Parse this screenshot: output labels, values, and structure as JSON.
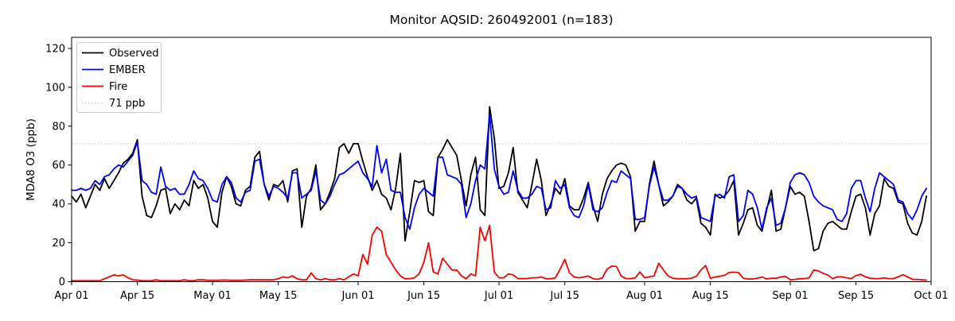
{
  "figure": {
    "title": "Monitor AQSID: 260492001 (n=183)",
    "ylabel": "MDA8 O3 (ppb)"
  },
  "chart_data": {
    "type": "line",
    "title": "Monitor AQSID: 260492001 (n=183)",
    "xlabel": "",
    "ylabel": "MDA8 O3 (ppb)",
    "n_points": 183,
    "x_unit": "days since Apr 01 (daily values, Apr 01 - Sep 30)",
    "x_axis_span_days": 183,
    "ylim": [
      0,
      125.7
    ],
    "yticks": [
      0,
      20,
      40,
      60,
      80,
      100,
      120
    ],
    "xticks": [
      {
        "day": 0,
        "label": "Apr 01"
      },
      {
        "day": 14,
        "label": "Apr 15"
      },
      {
        "day": 30,
        "label": "May 01"
      },
      {
        "day": 44,
        "label": "May 15"
      },
      {
        "day": 61,
        "label": "Jun 01"
      },
      {
        "day": 75,
        "label": "Jun 15"
      },
      {
        "day": 91,
        "label": "Jul 01"
      },
      {
        "day": 105,
        "label": "Jul 15"
      },
      {
        "day": 122,
        "label": "Aug 01"
      },
      {
        "day": 136,
        "label": "Aug 15"
      },
      {
        "day": 153,
        "label": "Sep 01"
      },
      {
        "day": 167,
        "label": "Sep 15"
      },
      {
        "day": 183,
        "label": "Oct 01"
      }
    ],
    "grid": false,
    "legend_position": "upper left",
    "threshold": {
      "value": 71,
      "label": "71 ppb",
      "color": "#d3d3d3",
      "style": "dotted"
    },
    "series": [
      {
        "name": "Observed",
        "color": "#000000",
        "values": [
          44,
          41,
          45,
          38,
          44,
          50,
          47,
          53,
          48,
          52,
          56,
          61,
          63,
          66,
          73,
          44,
          34,
          33,
          39,
          47,
          48,
          35,
          40,
          37,
          42,
          39,
          52,
          48,
          50,
          43,
          31,
          28,
          46,
          54,
          49,
          40,
          39,
          47,
          49,
          64,
          67,
          50,
          42,
          50,
          49,
          52,
          41,
          57,
          58,
          28,
          44,
          48,
          60,
          37,
          40,
          46,
          53,
          69,
          71,
          66,
          71,
          71,
          62,
          54,
          47,
          52,
          45,
          43,
          37,
          48,
          66,
          21,
          36,
          52,
          51,
          52,
          36,
          34,
          64,
          68,
          73,
          69,
          65,
          52,
          39,
          55,
          64,
          37,
          34,
          90,
          74,
          48,
          49,
          56,
          69,
          46,
          42,
          38,
          50,
          63,
          52,
          34,
          40,
          48,
          45,
          53,
          39,
          37,
          37,
          43,
          51,
          39,
          31,
          45,
          53,
          57,
          60,
          61,
          60,
          54,
          26,
          31,
          31,
          50,
          62,
          50,
          39,
          41,
          44,
          50,
          48,
          42,
          40,
          43,
          30,
          28,
          24,
          45,
          43,
          44,
          47,
          52,
          24,
          30,
          37,
          38,
          29,
          26,
          37,
          47,
          26,
          27,
          38,
          49,
          45,
          46,
          44,
          31,
          16,
          17,
          26,
          30,
          31,
          29,
          27,
          27,
          36,
          44,
          45,
          38,
          24,
          35,
          39,
          53,
          49,
          48,
          41,
          40,
          30,
          25,
          24,
          31,
          44
        ]
      },
      {
        "name": "EMBER",
        "color": "#0000ff",
        "values": [
          47,
          47,
          48,
          47,
          48,
          52,
          50,
          54,
          55,
          58,
          60,
          59,
          62,
          65,
          72,
          52,
          50,
          46,
          45,
          59,
          49,
          47,
          48,
          45,
          45,
          50,
          57,
          53,
          52,
          48,
          42,
          41,
          50,
          54,
          51,
          43,
          41,
          46,
          47,
          62,
          63,
          50,
          44,
          49,
          48,
          46,
          43,
          56,
          56,
          43,
          45,
          47,
          57,
          42,
          40,
          44,
          50,
          55,
          56,
          58,
          60,
          62,
          56,
          53,
          49,
          70,
          56,
          63,
          47,
          46,
          46,
          33,
          27,
          38,
          45,
          48,
          46,
          44,
          64,
          64,
          55,
          54,
          53,
          50,
          33,
          40,
          52,
          60,
          58,
          86,
          58,
          49,
          45,
          46,
          57,
          47,
          43,
          43,
          45,
          49,
          48,
          37,
          38,
          52,
          48,
          50,
          38,
          34,
          33,
          39,
          50,
          37,
          36,
          38,
          46,
          52,
          51,
          57,
          55,
          53,
          32,
          32,
          33,
          49,
          59,
          50,
          42,
          42,
          44,
          49,
          48,
          45,
          43,
          44,
          33,
          32,
          31,
          44,
          45,
          43,
          54,
          55,
          31,
          34,
          47,
          45,
          38,
          27,
          38,
          43,
          29,
          30,
          38,
          51,
          55,
          56,
          55,
          51,
          44,
          41,
          39,
          38,
          37,
          32,
          31,
          35,
          48,
          52,
          52,
          43,
          36,
          48,
          56,
          54,
          52,
          50,
          42,
          41,
          35,
          32,
          37,
          44,
          48
        ]
      },
      {
        "name": "Fire",
        "color": "#ff0000",
        "values": [
          0.5,
          0.5,
          0.5,
          0.5,
          0.5,
          0.5,
          0.5,
          1.5,
          2.5,
          3.5,
          3,
          3.5,
          2,
          1,
          0.8,
          0.5,
          0.5,
          0.5,
          1,
          0.5,
          0.5,
          0.5,
          0.5,
          0.5,
          1,
          0.5,
          0.5,
          1,
          1,
          0.7,
          0.7,
          0.7,
          0.8,
          0.8,
          0.7,
          0.7,
          0.7,
          0.8,
          1,
          1,
          1,
          1,
          1,
          1,
          1.5,
          2.5,
          2,
          3,
          1.5,
          1,
          1,
          4.5,
          1.5,
          1,
          1.5,
          1,
          1,
          1.5,
          1,
          2.5,
          4,
          3,
          14,
          9,
          24,
          28,
          26,
          14,
          10,
          6,
          3,
          1.5,
          1.5,
          2,
          4,
          10,
          20,
          5,
          4,
          12,
          9,
          6,
          6,
          3,
          1.5,
          4,
          3,
          28,
          21,
          29,
          5,
          2,
          2,
          4,
          3.5,
          1.6,
          1.6,
          1.6,
          2,
          2,
          2.4,
          1.5,
          1.5,
          2,
          6.5,
          11.5,
          4.5,
          2.4,
          2,
          2.4,
          2.9,
          1.6,
          1.2,
          2,
          6.5,
          8,
          7.8,
          2.9,
          1.6,
          1.6,
          2,
          5,
          2,
          2.5,
          3,
          9.5,
          6,
          3,
          1.8,
          1.5,
          1.5,
          1.5,
          1.8,
          2.8,
          6,
          8.3,
          1.8,
          2.4,
          2.8,
          3.3,
          4.7,
          4.9,
          4.7,
          1.8,
          1.4,
          1.4,
          1.8,
          2.4,
          1.4,
          1.8,
          1.8,
          2.4,
          2.8,
          1,
          1.2,
          1.5,
          1.5,
          2,
          6,
          5.5,
          4.3,
          3.4,
          1.6,
          2.5,
          2.5,
          2,
          1.6,
          3.2,
          3.8,
          2.5,
          1.8,
          1.6,
          1.6,
          2,
          1.6,
          1.6,
          2.5,
          3.6,
          2.5,
          1.2,
          1.2,
          1,
          0.8
        ]
      }
    ],
    "legend": [
      "Observed",
      "EMBER",
      "Fire",
      "71 ppb"
    ]
  }
}
